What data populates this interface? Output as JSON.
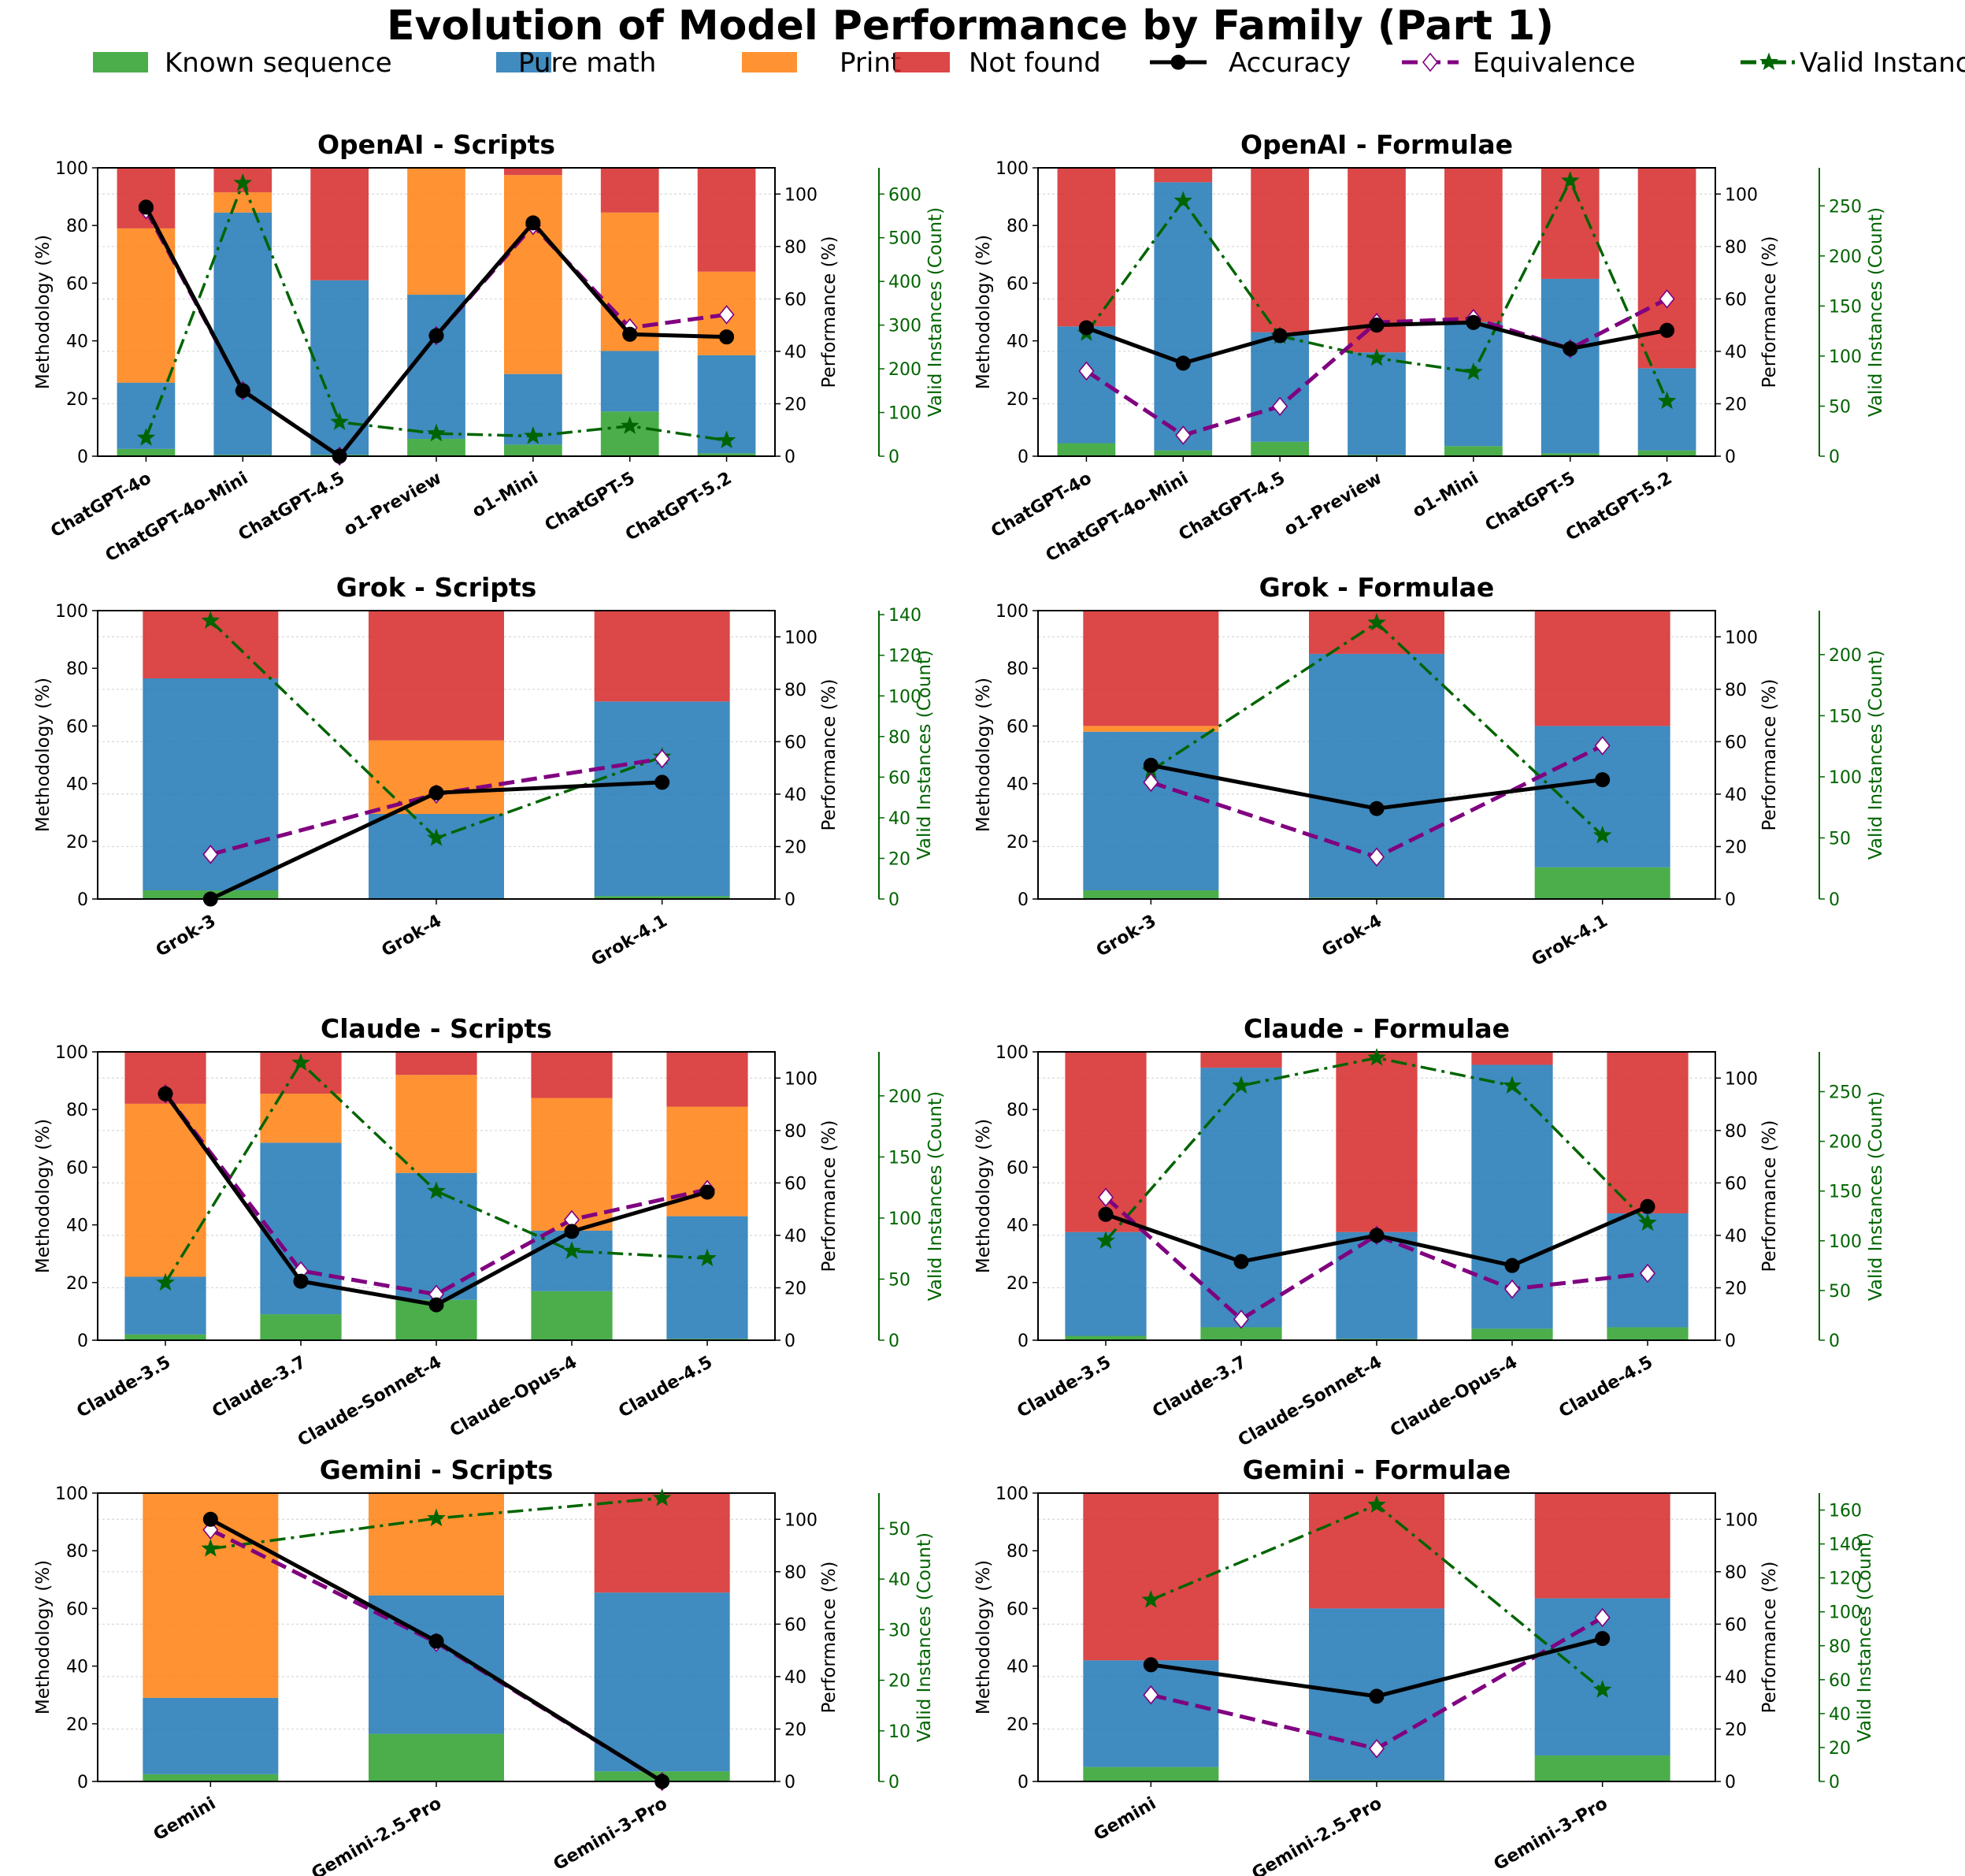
{
  "title": "Evolution of Model Performance by Family (Part 1)",
  "legend": [
    {
      "label": "Known sequence",
      "kind": "bar",
      "color": "#2ca02c"
    },
    {
      "label": "Pure math",
      "kind": "bar",
      "color": "#1f77b4"
    },
    {
      "label": "Print",
      "kind": "bar",
      "color": "#ff7f0e"
    },
    {
      "label": "Not found",
      "kind": "bar",
      "color": "#d62728"
    },
    {
      "label": "Accuracy",
      "kind": "line",
      "color": "#000000",
      "marker": "circle",
      "dash": "solid"
    },
    {
      "label": "Equivalence",
      "kind": "line",
      "color": "#800080",
      "marker": "diamond",
      "dash": "dashed"
    },
    {
      "label": "Valid Instances",
      "kind": "line",
      "color": "#006400",
      "marker": "star",
      "dash": "dashdot"
    }
  ],
  "axes_labels": {
    "left": "Methodology (%)",
    "right": "Performance (%)",
    "count": "Valid Instances (Count)"
  },
  "chart_data": [
    {
      "type": "bar",
      "title": "OpenAI - Scripts",
      "categories": [
        "ChatGPT-4o",
        "ChatGPT-4o-Mini",
        "ChatGPT-4.5",
        "o1-Preview",
        "o1-Mini",
        "ChatGPT-5",
        "ChatGPT-5.2"
      ],
      "stack": {
        "known_sequence": [
          2.5,
          0.5,
          0.5,
          6,
          4,
          15.5,
          1
        ],
        "pure_math": [
          23,
          84,
          60.5,
          50,
          24.5,
          21,
          34
        ],
        "print": [
          53.5,
          7,
          0,
          44,
          69,
          48,
          29
        ],
        "not_found": [
          21,
          8.5,
          39,
          0,
          2.5,
          15.5,
          36
        ]
      },
      "accuracy": [
        95,
        25,
        0,
        46,
        89,
        46.5,
        45.5
      ],
      "equivalence": [
        94,
        25,
        0,
        46,
        88,
        49,
        54
      ],
      "valid_instances": [
        42,
        625,
        78,
        52,
        46,
        69,
        36
      ],
      "ylim_left": [
        0,
        100
      ],
      "ylim_right": [
        0,
        110
      ],
      "ylim_count": [
        0,
        660
      ],
      "count_ticks": [
        0,
        100,
        200,
        300,
        400,
        500,
        600
      ]
    },
    {
      "type": "bar",
      "title": "OpenAI - Formulae",
      "categories": [
        "ChatGPT-4o",
        "ChatGPT-4o-Mini",
        "ChatGPT-4.5",
        "o1-Preview",
        "o1-Mini",
        "ChatGPT-5",
        "ChatGPT-5.2"
      ],
      "stack": {
        "known_sequence": [
          4.5,
          2,
          5,
          0.5,
          3.5,
          1,
          2
        ],
        "pure_math": [
          40.5,
          93,
          38,
          35.5,
          43,
          60.5,
          28.5
        ],
        "print": [
          0,
          0,
          0,
          0,
          0,
          0,
          0
        ],
        "not_found": [
          55,
          5,
          57,
          64,
          53.5,
          38.5,
          69.5
        ]
      },
      "accuracy": [
        49,
        35.5,
        46,
        50,
        51,
        41,
        48
      ],
      "equivalence": [
        32.5,
        8,
        19,
        51,
        52.5,
        41,
        60
      ],
      "valid_instances": [
        123,
        255,
        120,
        98,
        84,
        275,
        55
      ],
      "ylim_left": [
        0,
        100
      ],
      "ylim_right": [
        0,
        110
      ],
      "ylim_count": [
        0,
        288
      ],
      "count_ticks": [
        0,
        50,
        100,
        150,
        200,
        250
      ]
    },
    {
      "type": "bar",
      "title": "Grok - Scripts",
      "categories": [
        "Grok-3",
        "Grok-4",
        "Grok-4.1"
      ],
      "stack": {
        "known_sequence": [
          3,
          0,
          1
        ],
        "pure_math": [
          73.5,
          29.5,
          67.5
        ],
        "print": [
          0,
          25.5,
          0
        ],
        "not_found": [
          23.5,
          45,
          31.5
        ]
      },
      "accuracy": [
        0,
        40.5,
        44.5
      ],
      "equivalence": [
        17,
        40,
        53.5
      ],
      "valid_instances": [
        137,
        30,
        70
      ],
      "ylim_left": [
        0,
        100
      ],
      "ylim_right": [
        0,
        110
      ],
      "ylim_count": [
        0,
        142
      ],
      "count_ticks": [
        0,
        20,
        40,
        60,
        80,
        100,
        120,
        140
      ]
    },
    {
      "type": "bar",
      "title": "Grok - Formulae",
      "categories": [
        "Grok-3",
        "Grok-4",
        "Grok-4.1"
      ],
      "stack": {
        "known_sequence": [
          3,
          0.5,
          11
        ],
        "pure_math": [
          55,
          84.5,
          49
        ],
        "print": [
          2,
          0,
          0
        ],
        "not_found": [
          40,
          15,
          40
        ]
      },
      "accuracy": [
        51,
        34.5,
        45.5
      ],
      "equivalence": [
        44.5,
        16,
        58.5
      ],
      "valid_instances": [
        105,
        226,
        52
      ],
      "ylim_left": [
        0,
        100
      ],
      "ylim_right": [
        0,
        110
      ],
      "ylim_count": [
        0,
        236
      ],
      "count_ticks": [
        0,
        50,
        100,
        150,
        200
      ]
    },
    {
      "type": "bar",
      "title": "Claude - Scripts",
      "categories": [
        "Claude-3.5",
        "Claude-3.7",
        "Claude-Sonnet-4",
        "Claude-Opus-4",
        "Claude-4.5"
      ],
      "stack": {
        "known_sequence": [
          2,
          9,
          14,
          17,
          0.5
        ],
        "pure_math": [
          20,
          59.5,
          44,
          21,
          42.5
        ],
        "print": [
          60,
          17,
          34,
          46,
          38
        ],
        "not_found": [
          18,
          14.5,
          8,
          16,
          19
        ]
      },
      "accuracy": [
        94,
        22.5,
        13.5,
        41.5,
        56.5
      ],
      "equivalence": [
        94,
        26.5,
        17.5,
        46,
        57.5
      ],
      "valid_instances": [
        47,
        227,
        122,
        73,
        67
      ],
      "ylim_left": [
        0,
        100
      ],
      "ylim_right": [
        0,
        110
      ],
      "ylim_count": [
        0,
        236
      ],
      "count_ticks": [
        0,
        50,
        100,
        150,
        200
      ]
    },
    {
      "type": "bar",
      "title": "Claude - Formulae",
      "categories": [
        "Claude-3.5",
        "Claude-3.7",
        "Claude-Sonnet-4",
        "Claude-Opus-4",
        "Claude-4.5"
      ],
      "stack": {
        "known_sequence": [
          1.5,
          4.5,
          0.5,
          4,
          4.5
        ],
        "pure_math": [
          36,
          90,
          37,
          91.5,
          39.5
        ],
        "print": [
          0,
          0,
          0,
          0,
          0
        ],
        "not_found": [
          62.5,
          5.5,
          62.5,
          4.5,
          56
        ]
      },
      "accuracy": [
        48,
        30,
        40,
        28.5,
        51
      ],
      "equivalence": [
        54.5,
        8,
        40,
        19.5,
        25.5
      ],
      "valid_instances": [
        100,
        256,
        284,
        256,
        118
      ],
      "ylim_left": [
        0,
        100
      ],
      "ylim_right": [
        0,
        110
      ],
      "ylim_count": [
        0,
        290
      ],
      "count_ticks": [
        0,
        50,
        100,
        150,
        200,
        250
      ]
    },
    {
      "type": "bar",
      "title": "Gemini - Scripts",
      "categories": [
        "Gemini",
        "Gemini-2.5-Pro",
        "Gemini-3-Pro"
      ],
      "stack": {
        "known_sequence": [
          2.5,
          16.5,
          3.5
        ],
        "pure_math": [
          26.5,
          48,
          62
        ],
        "print": [
          71,
          35.5,
          0
        ],
        "not_found": [
          0,
          0,
          34.5
        ]
      },
      "accuracy": [
        100,
        53.5,
        0
      ],
      "equivalence": [
        96,
        53,
        0
      ],
      "valid_instances": [
        46,
        52,
        56
      ],
      "ylim_left": [
        0,
        100
      ],
      "ylim_right": [
        0,
        110
      ],
      "ylim_count": [
        0,
        57
      ],
      "count_ticks": [
        0,
        10,
        20,
        30,
        40,
        50
      ]
    },
    {
      "type": "bar",
      "title": "Gemini - Formulae",
      "categories": [
        "Gemini",
        "Gemini-2.5-Pro",
        "Gemini-3-Pro"
      ],
      "stack": {
        "known_sequence": [
          5,
          0.5,
          9
        ],
        "pure_math": [
          37,
          59.5,
          54.5
        ],
        "print": [
          0,
          0,
          0
        ],
        "not_found": [
          58,
          40,
          36.5
        ]
      },
      "accuracy": [
        44.5,
        32.5,
        54.5
      ],
      "equivalence": [
        33,
        12.5,
        62.5
      ],
      "valid_instances": [
        107,
        163,
        54
      ],
      "ylim_left": [
        0,
        100
      ],
      "ylim_right": [
        0,
        110
      ],
      "ylim_count": [
        0,
        170
      ],
      "count_ticks": [
        0,
        20,
        40,
        60,
        80,
        100,
        120,
        140,
        160
      ]
    }
  ]
}
